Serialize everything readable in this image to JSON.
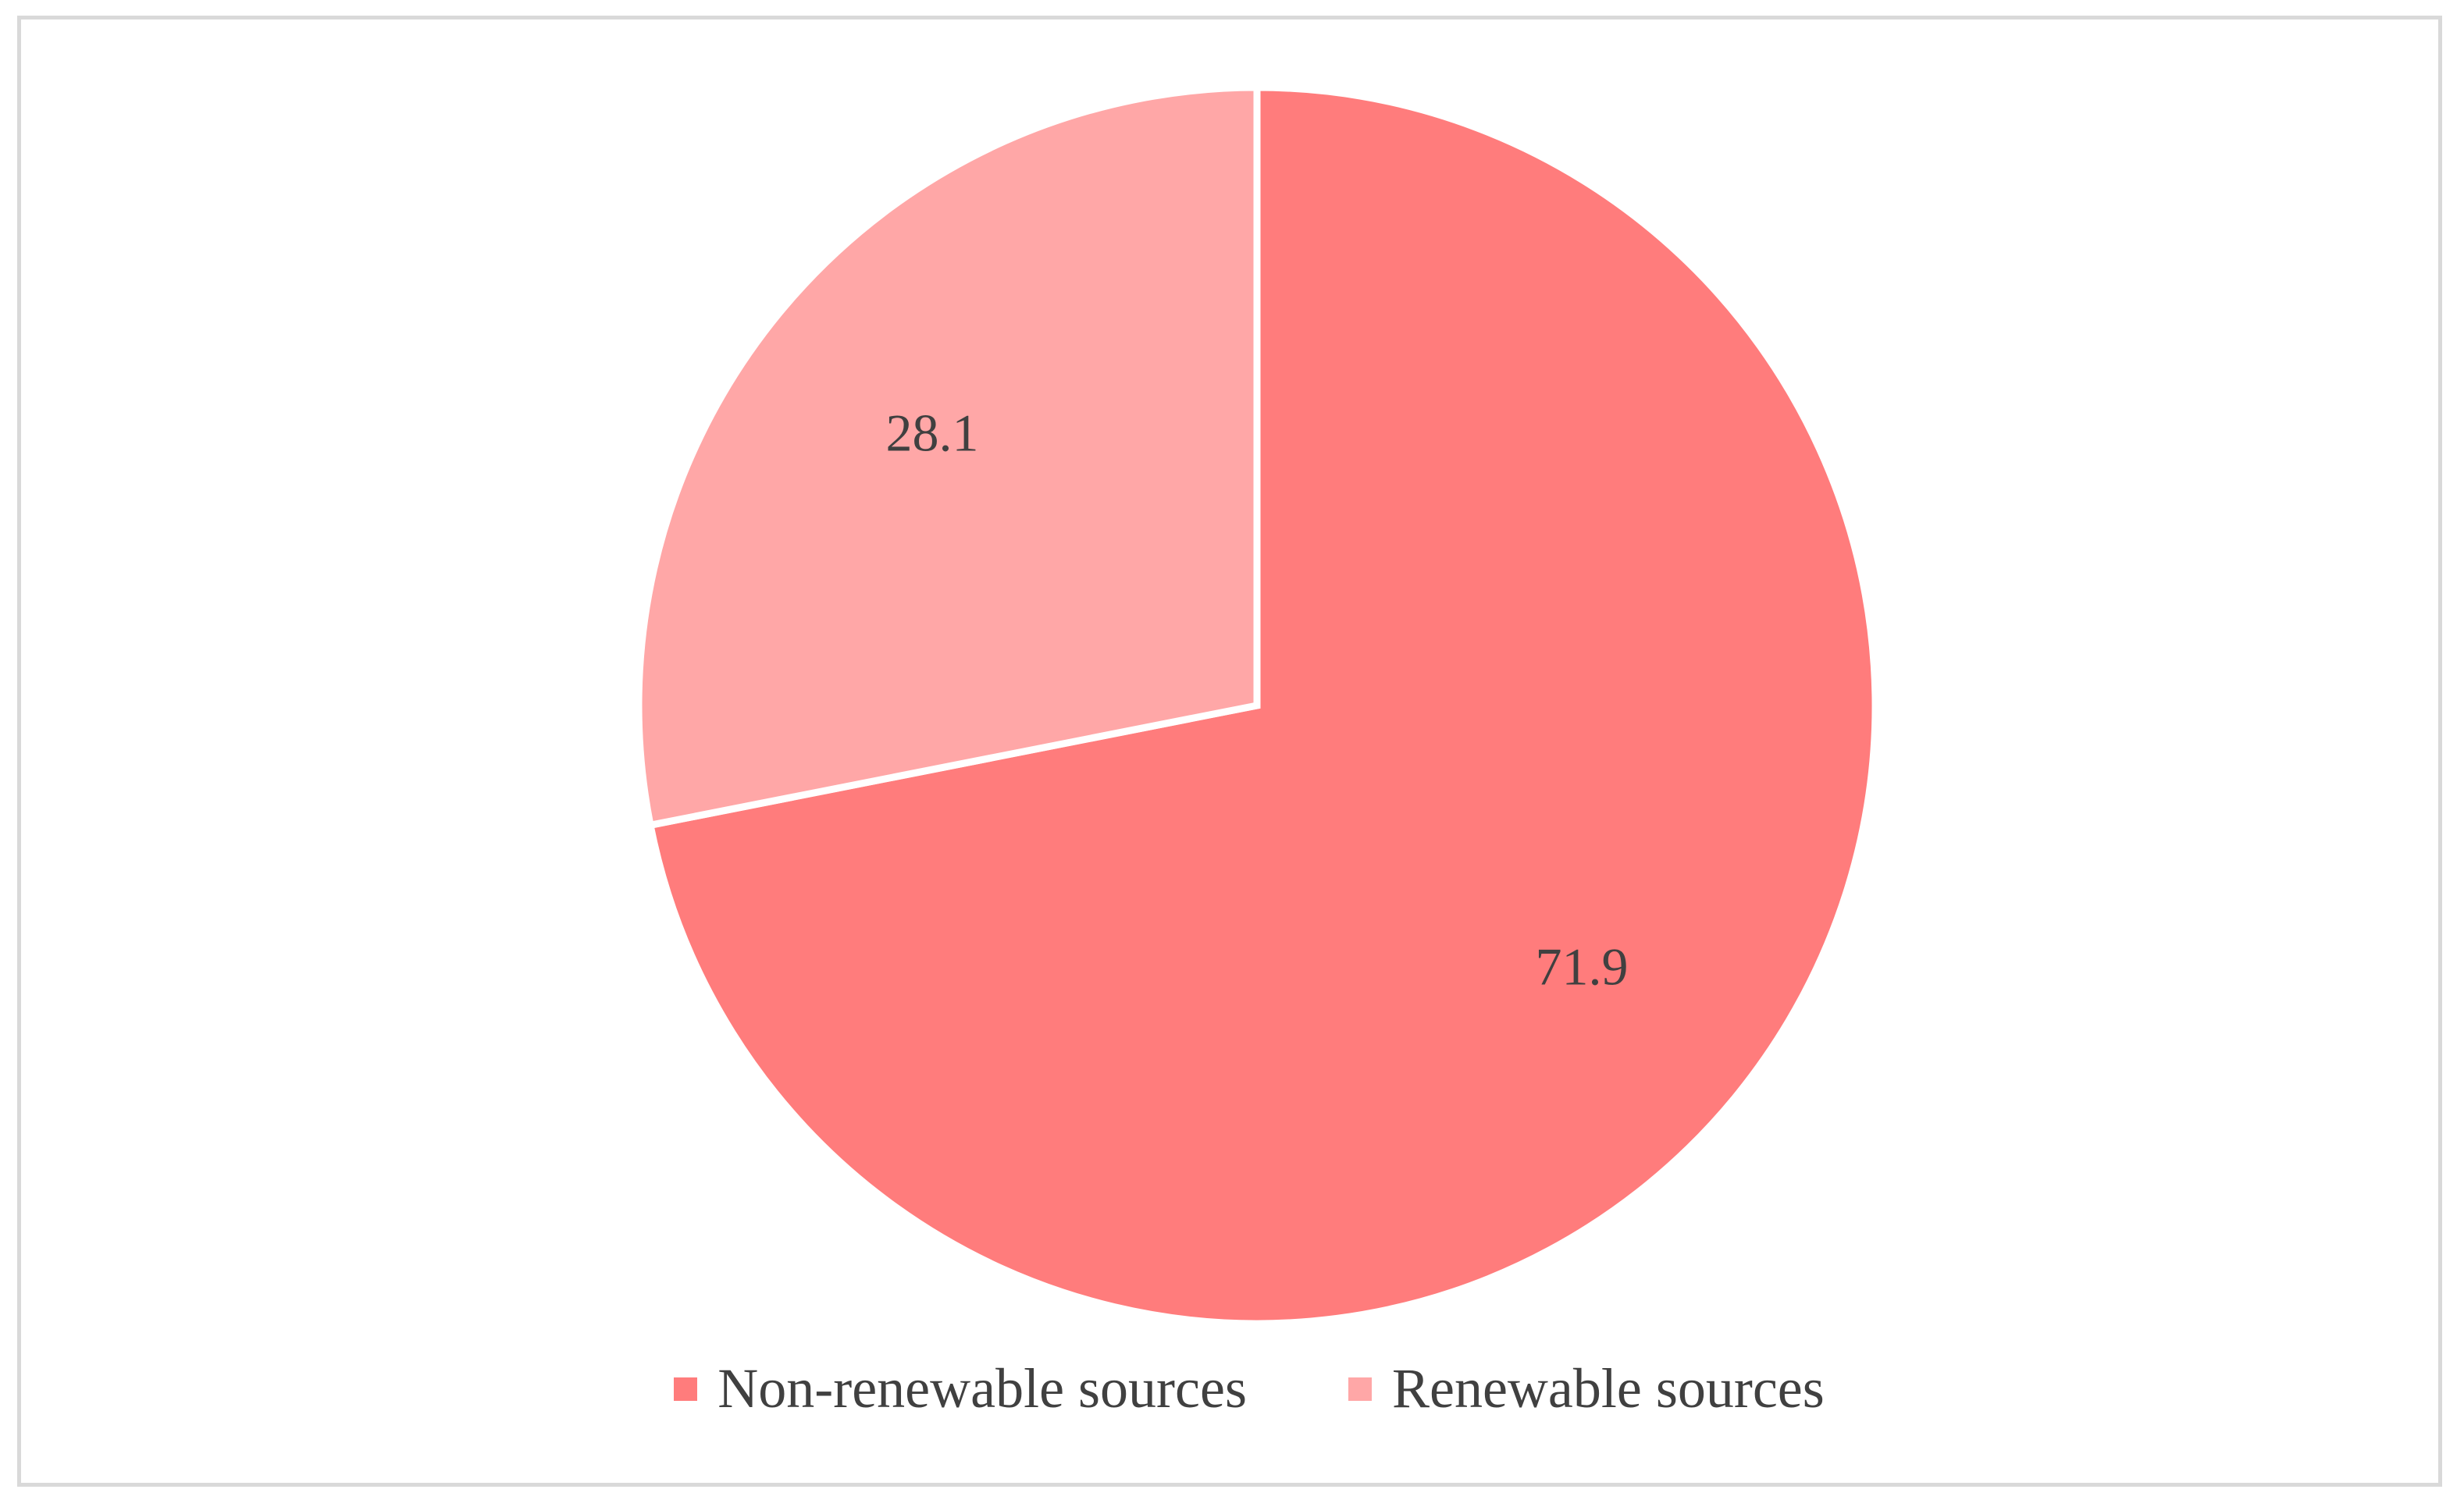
{
  "chart_data": {
    "type": "pie",
    "title": "",
    "categories": [
      "Non-renewable sources",
      "Renewable sources"
    ],
    "values": [
      71.9,
      28.1
    ],
    "data_labels": [
      "71.9",
      "28.1"
    ],
    "colors": [
      "#ff7c7c",
      "#ffa7a7"
    ],
    "start_angle": "12 o'clock, clockwise",
    "legend_position": "bottom"
  },
  "legend": {
    "items": [
      {
        "label": "Non-renewable sources",
        "color": "#ff7c7c"
      },
      {
        "label": "Renewable sources",
        "color": "#ffa7a7"
      }
    ]
  }
}
